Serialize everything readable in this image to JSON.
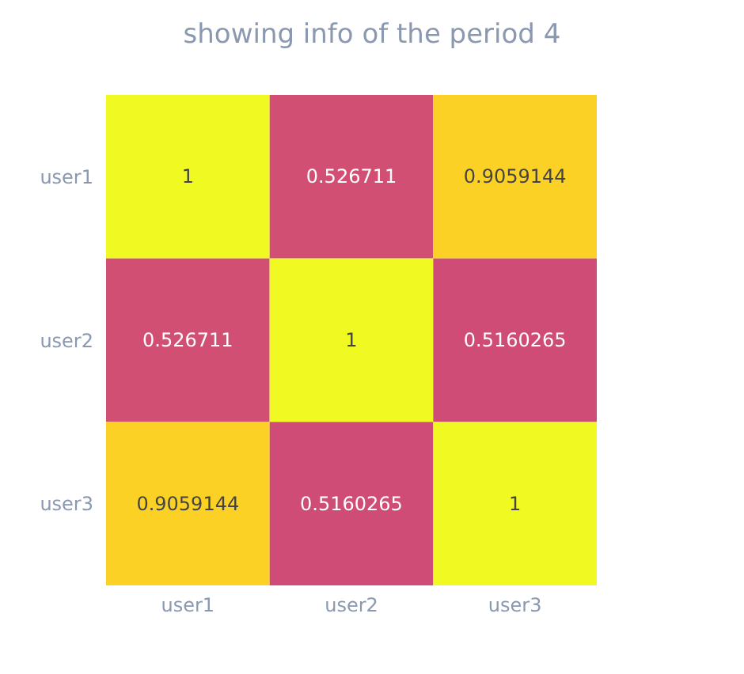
{
  "chart_data": {
    "type": "heatmap",
    "title": "showing info of the period 4",
    "data_labels": true,
    "categories": [
      "user1",
      "user2",
      "user3"
    ],
    "y_categories": [
      "user1",
      "user2",
      "user3"
    ],
    "cells": [
      [
        1,
        0.526711,
        0.9059144
      ],
      [
        0.526711,
        1,
        0.5160265
      ],
      [
        0.9059144,
        0.5160265,
        1
      ]
    ]
  }
}
